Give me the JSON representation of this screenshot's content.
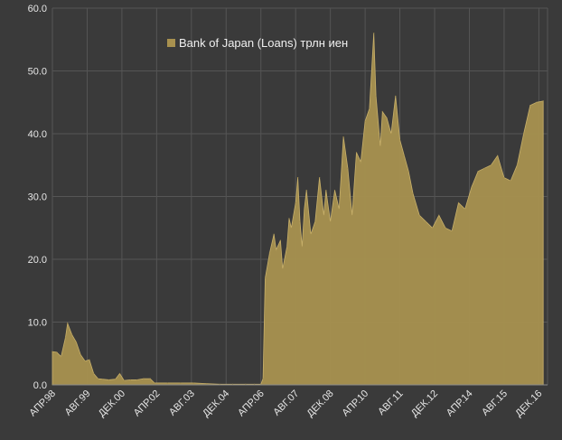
{
  "chart_data": {
    "type": "area",
    "legend_position": "top-center",
    "grid": true,
    "colors": {
      "background": "#3a3a3a",
      "series": "#a8914f",
      "grid": "#555555",
      "text": "#e6e6e6"
    },
    "y_axis": {
      "ylim": [
        0,
        60
      ],
      "ticks": [
        "0.0",
        "10.0",
        "20.0",
        "30.0",
        "40.0",
        "50.0",
        "60.0"
      ]
    },
    "x_axis": {
      "tick_labels": [
        "АПР.98",
        "АВГ.99",
        "ДЕК.00",
        "АПР.02",
        "АВГ.03",
        "ДЕК.04",
        "АПР.06",
        "АВГ.07",
        "ДЕК.08",
        "АПР.10",
        "АВГ.11",
        "ДЕК.12",
        "АПР.14",
        "АВГ.15",
        "ДЕК.16"
      ]
    },
    "series": [
      {
        "name": "Bank of Japan (Loans) трлн иен",
        "points": [
          [
            "1998-04",
            5.3
          ],
          [
            "1998-06",
            5.2
          ],
          [
            "1998-08",
            4.5
          ],
          [
            "1998-10",
            7.5
          ],
          [
            "1998-11",
            9.8
          ],
          [
            "1999-01",
            8.0
          ],
          [
            "1999-03",
            6.8
          ],
          [
            "1999-05",
            4.8
          ],
          [
            "1999-07",
            3.8
          ],
          [
            "1999-09",
            4.0
          ],
          [
            "1999-11",
            1.8
          ],
          [
            "2000-01",
            1.0
          ],
          [
            "2000-03",
            0.9
          ],
          [
            "2000-06",
            0.8
          ],
          [
            "2000-09",
            0.9
          ],
          [
            "2000-11",
            1.8
          ],
          [
            "2001-01",
            0.7
          ],
          [
            "2001-04",
            0.8
          ],
          [
            "2001-07",
            0.8
          ],
          [
            "2001-10",
            1.0
          ],
          [
            "2002-01",
            1.0
          ],
          [
            "2002-03",
            0.3
          ],
          [
            "2002-09",
            0.3
          ],
          [
            "2003-03",
            0.3
          ],
          [
            "2003-09",
            0.3
          ],
          [
            "2004-03",
            0.2
          ],
          [
            "2004-09",
            0.1
          ],
          [
            "2005-03",
            0.1
          ],
          [
            "2005-09",
            0.1
          ],
          [
            "2006-01",
            0.1
          ],
          [
            "2006-04",
            0.1
          ],
          [
            "2006-05",
            1.0
          ],
          [
            "2006-06",
            17.0
          ],
          [
            "2006-08",
            21.0
          ],
          [
            "2006-10",
            24.0
          ],
          [
            "2006-11",
            21.5
          ],
          [
            "2007-01",
            23.0
          ],
          [
            "2007-02",
            18.5
          ],
          [
            "2007-04",
            22.0
          ],
          [
            "2007-05",
            26.5
          ],
          [
            "2007-06",
            25.0
          ],
          [
            "2007-08",
            29.0
          ],
          [
            "2007-09",
            33.0
          ],
          [
            "2007-10",
            26.0
          ],
          [
            "2007-11",
            22.0
          ],
          [
            "2007-12",
            28.0
          ],
          [
            "2008-01",
            31.0
          ],
          [
            "2008-03",
            24.0
          ],
          [
            "2008-05",
            26.0
          ],
          [
            "2008-07",
            33.0
          ],
          [
            "2008-09",
            27.0
          ],
          [
            "2008-10",
            31.0
          ],
          [
            "2008-12",
            26.0
          ],
          [
            "2009-02",
            31.0
          ],
          [
            "2009-04",
            28.0
          ],
          [
            "2009-06",
            39.5
          ],
          [
            "2009-08",
            34.5
          ],
          [
            "2009-10",
            27.0
          ],
          [
            "2009-12",
            37.0
          ],
          [
            "2010-02",
            35.5
          ],
          [
            "2010-04",
            42.0
          ],
          [
            "2010-06",
            44.0
          ],
          [
            "2010-08",
            56.0
          ],
          [
            "2010-09",
            46.0
          ],
          [
            "2010-11",
            38.0
          ],
          [
            "2010-12",
            43.5
          ],
          [
            "2011-02",
            42.5
          ],
          [
            "2011-04",
            40.0
          ],
          [
            "2011-06",
            46.0
          ],
          [
            "2011-08",
            39.0
          ],
          [
            "2011-10",
            36.5
          ],
          [
            "2011-12",
            34.0
          ],
          [
            "2012-02",
            30.5
          ],
          [
            "2012-05",
            27.0
          ],
          [
            "2012-08",
            26.0
          ],
          [
            "2012-11",
            25.0
          ],
          [
            "2013-02",
            27.0
          ],
          [
            "2013-05",
            25.0
          ],
          [
            "2013-08",
            24.5
          ],
          [
            "2013-11",
            29.0
          ],
          [
            "2014-02",
            28.0
          ],
          [
            "2014-05",
            31.5
          ],
          [
            "2014-08",
            34.0
          ],
          [
            "2014-11",
            34.5
          ],
          [
            "2015-02",
            35.0
          ],
          [
            "2015-05",
            36.5
          ],
          [
            "2015-08",
            33.0
          ],
          [
            "2015-11",
            32.5
          ],
          [
            "2016-02",
            35.0
          ],
          [
            "2016-05",
            40.0
          ],
          [
            "2016-08",
            44.5
          ],
          [
            "2016-11",
            45.0
          ],
          [
            "2017-02",
            45.2
          ]
        ]
      }
    ]
  }
}
